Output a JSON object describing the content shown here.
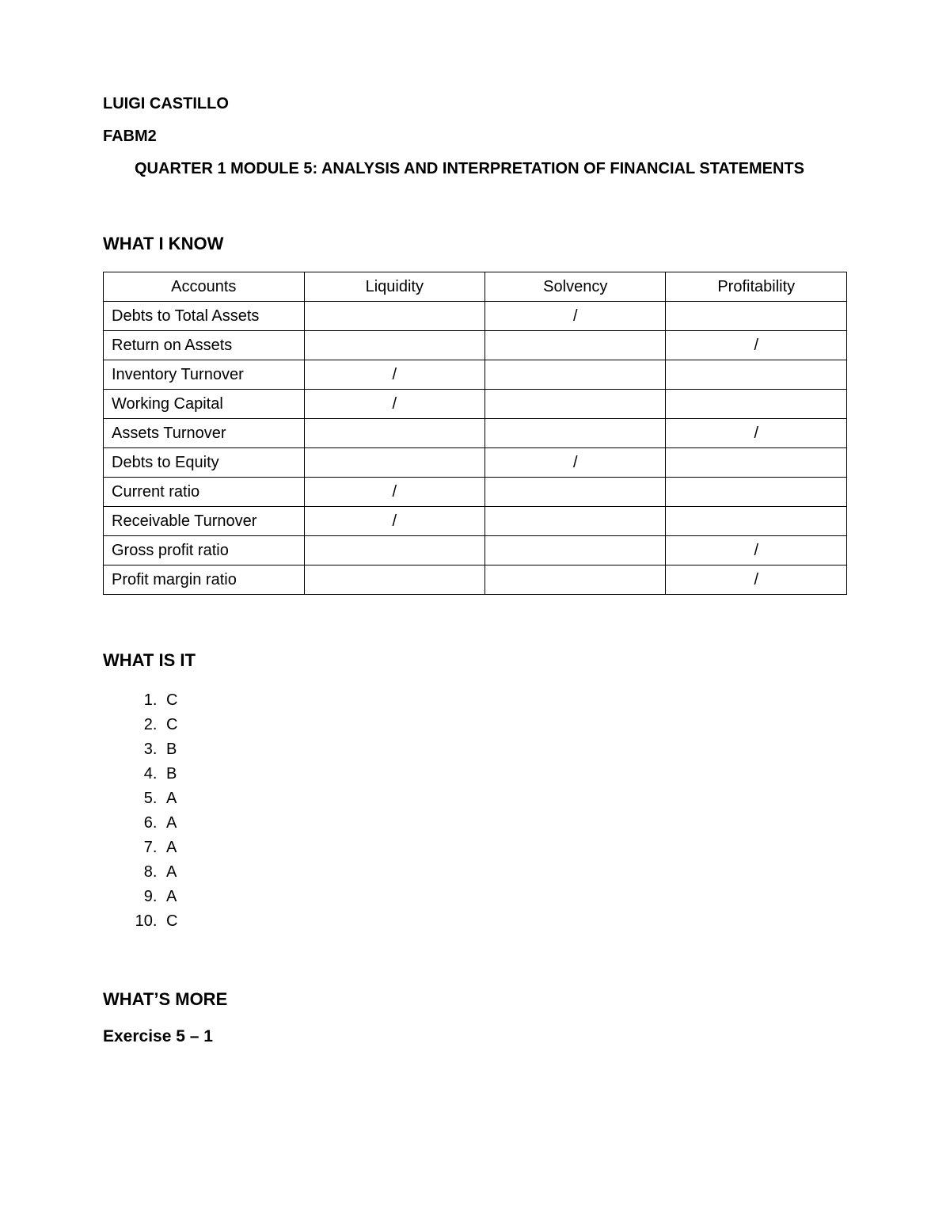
{
  "header": {
    "student_name": "LUIGI CASTILLO",
    "subject_code": "FABM2",
    "module_title": "QUARTER 1 MODULE 5: ANALYSIS AND INTERPRETATION OF FINANCIAL STATEMENTS"
  },
  "what_i_know": {
    "heading": "WHAT I KNOW",
    "table": {
      "columns": [
        "Accounts",
        "Liquidity",
        "Solvency",
        "Profitability"
      ],
      "mark_symbol": "/",
      "rows": [
        {
          "account": "Debts to Total Assets",
          "liquidity": "",
          "solvency": "/",
          "profitability": ""
        },
        {
          "account": "Return on Assets",
          "liquidity": "",
          "solvency": "",
          "profitability": "/"
        },
        {
          "account": "Inventory Turnover",
          "liquidity": "/",
          "solvency": "",
          "profitability": ""
        },
        {
          "account": "Working Capital",
          "liquidity": "/",
          "solvency": "",
          "profitability": ""
        },
        {
          "account": "Assets Turnover",
          "liquidity": "",
          "solvency": "",
          "profitability": "/"
        },
        {
          "account": "Debts to Equity",
          "liquidity": "",
          "solvency": "/",
          "profitability": ""
        },
        {
          "account": "Current ratio",
          "liquidity": "/",
          "solvency": "",
          "profitability": ""
        },
        {
          "account": "Receivable Turnover",
          "liquidity": "/",
          "solvency": "",
          "profitability": ""
        },
        {
          "account": "Gross profit ratio",
          "liquidity": "",
          "solvency": "",
          "profitability": "/"
        },
        {
          "account": "Profit margin ratio",
          "liquidity": "",
          "solvency": "",
          "profitability": "/"
        }
      ]
    }
  },
  "what_is_it": {
    "heading": "WHAT IS IT",
    "answers": [
      "C",
      "C",
      "B",
      "B",
      "A",
      "A",
      "A",
      "A",
      "A",
      "C"
    ]
  },
  "whats_more": {
    "heading": "WHAT’S MORE",
    "exercise_label": "Exercise 5 – 1"
  }
}
